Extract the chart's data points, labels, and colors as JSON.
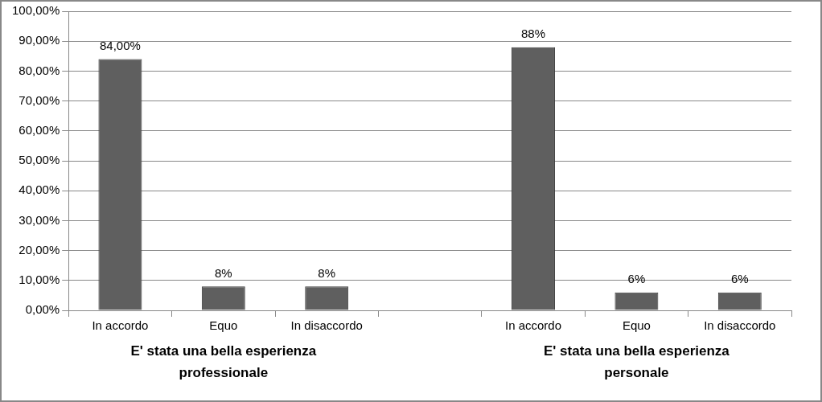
{
  "chart_data": {
    "type": "bar",
    "categories": [
      "In accordo",
      "Equo",
      "In disaccordo",
      null,
      "In accordo",
      "Equo",
      "In disaccordo"
    ],
    "values": [
      84,
      8,
      8,
      null,
      88,
      6,
      6
    ],
    "value_labels": [
      "84,00%",
      "8%",
      "8%",
      null,
      "88%",
      "6%",
      "6%"
    ],
    "color": "#5f5f5f",
    "ylim": [
      0,
      100
    ],
    "yticks": [
      {
        "value": 0,
        "label": "0,00%"
      },
      {
        "value": 10,
        "label": "10,00%"
      },
      {
        "value": 20,
        "label": "20,00%"
      },
      {
        "value": 30,
        "label": "30,00%"
      },
      {
        "value": 40,
        "label": "40,00%"
      },
      {
        "value": 50,
        "label": "50,00%"
      },
      {
        "value": 60,
        "label": "60,00%"
      },
      {
        "value": 70,
        "label": "70,00%"
      },
      {
        "value": 80,
        "label": "80,00%"
      },
      {
        "value": 90,
        "label": "90,00%"
      },
      {
        "value": 100,
        "label": "100,00%"
      }
    ],
    "grid": "y",
    "annotations": [
      "E' stata una bella esperienza professionale",
      "E' stata una bella esperienza personale"
    ]
  }
}
